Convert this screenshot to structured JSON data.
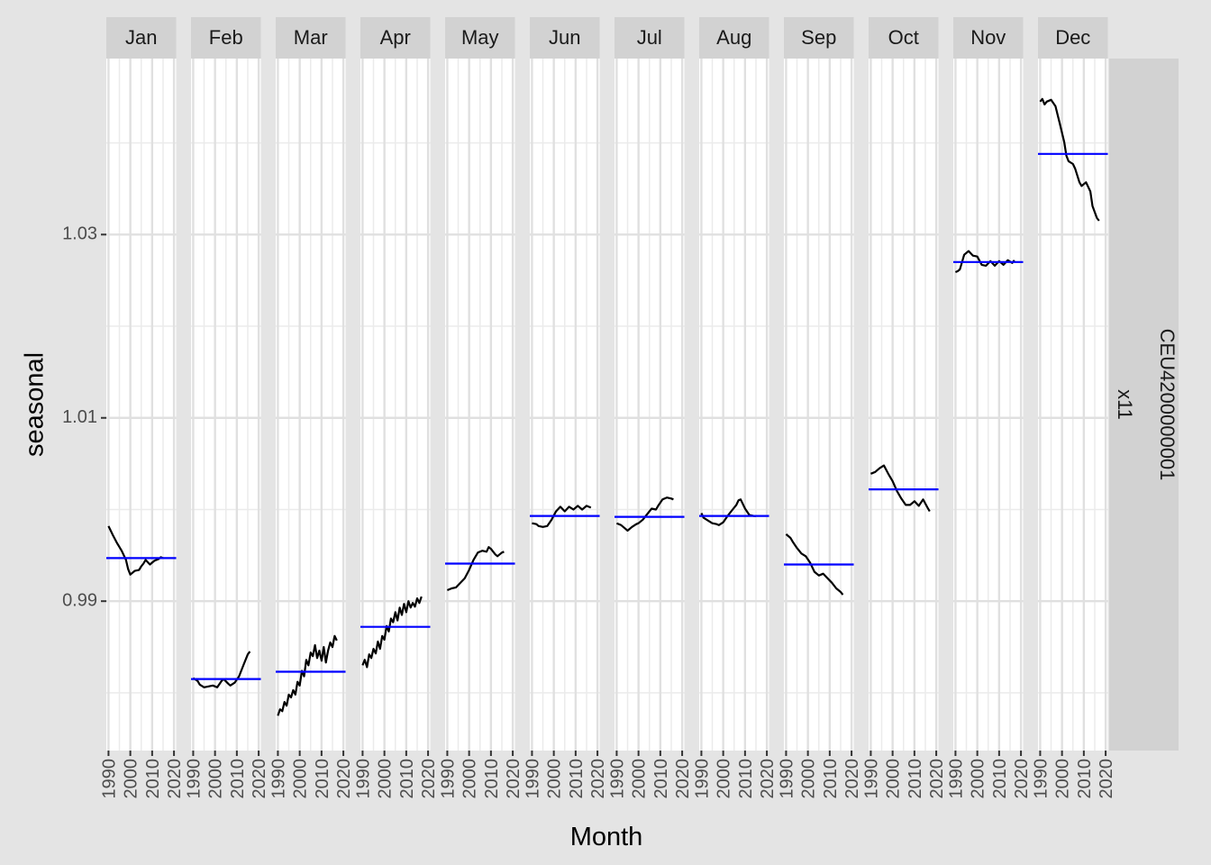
{
  "chart_data": {
    "type": "line",
    "xlabel": "Month",
    "ylabel": "seasonal",
    "facet_row_labels": [
      "CEU4200000001",
      "x11"
    ],
    "months": [
      "Jan",
      "Feb",
      "Mar",
      "Apr",
      "May",
      "Jun",
      "Jul",
      "Aug",
      "Sep",
      "Oct",
      "Nov",
      "Dec"
    ],
    "x_ticks": [
      1990,
      2000,
      2010,
      2020
    ],
    "xlim": [
      1989,
      2021
    ],
    "y_ticks": [
      0.99,
      1.01,
      1.03
    ],
    "y_tick_labels": [
      "0.99",
      "1.01",
      "1.03"
    ],
    "ylim": [
      0.9737,
      1.0492
    ],
    "line_color": "#000000",
    "mean_color": "#0000ff",
    "panels": [
      {
        "month": "Jan",
        "mean": 0.9947,
        "series": [
          [
            1990,
            0.9982
          ],
          [
            1992,
            0.9972
          ],
          [
            1994,
            0.9963
          ],
          [
            1996,
            0.9955
          ],
          [
            1998,
            0.9945
          ],
          [
            1999,
            0.9935
          ],
          [
            2000,
            0.9929
          ],
          [
            2002,
            0.9933
          ],
          [
            2004,
            0.9934
          ],
          [
            2005,
            0.9938
          ],
          [
            2006,
            0.9941
          ],
          [
            2007,
            0.9945
          ],
          [
            2009,
            0.994
          ],
          [
            2011,
            0.9944
          ],
          [
            2013,
            0.9946
          ],
          [
            2014,
            0.9948
          ],
          [
            2015,
            0.9947
          ]
        ]
      },
      {
        "month": "Feb",
        "mean": 0.9815,
        "series": [
          [
            1990,
            0.9816
          ],
          [
            1992,
            0.9813
          ],
          [
            1993,
            0.9809
          ],
          [
            1995,
            0.9806
          ],
          [
            1997,
            0.9807
          ],
          [
            1999,
            0.9808
          ],
          [
            2001,
            0.9806
          ],
          [
            2003,
            0.9813
          ],
          [
            2004,
            0.9815
          ],
          [
            2006,
            0.981
          ],
          [
            2007,
            0.9808
          ],
          [
            2009,
            0.9811
          ],
          [
            2011,
            0.9818
          ],
          [
            2013,
            0.983
          ],
          [
            2015,
            0.9842
          ],
          [
            2016,
            0.9845
          ]
        ]
      },
      {
        "month": "Mar",
        "mean": 0.9823,
        "series": [
          [
            1990,
            0.9775
          ],
          [
            1991,
            0.9782
          ],
          [
            1992,
            0.978
          ],
          [
            1993,
            0.979
          ],
          [
            1994,
            0.9786
          ],
          [
            1995,
            0.9798
          ],
          [
            1996,
            0.9795
          ],
          [
            1997,
            0.9803
          ],
          [
            1998,
            0.9798
          ],
          [
            1999,
            0.9812
          ],
          [
            2000,
            0.9808
          ],
          [
            2001,
            0.9824
          ],
          [
            2002,
            0.9818
          ],
          [
            2003,
            0.9836
          ],
          [
            2004,
            0.983
          ],
          [
            2005,
            0.9844
          ],
          [
            2006,
            0.984
          ],
          [
            2007,
            0.9852
          ],
          [
            2008,
            0.9838
          ],
          [
            2009,
            0.9846
          ],
          [
            2010,
            0.9835
          ],
          [
            2011,
            0.985
          ],
          [
            2012,
            0.9833
          ],
          [
            2013,
            0.9846
          ],
          [
            2014,
            0.9855
          ],
          [
            2015,
            0.985
          ],
          [
            2016,
            0.9862
          ],
          [
            2017,
            0.9857
          ]
        ]
      },
      {
        "month": "Apr",
        "mean": 0.9872,
        "series": [
          [
            1990,
            0.983
          ],
          [
            1991,
            0.9836
          ],
          [
            1992,
            0.9828
          ],
          [
            1993,
            0.9842
          ],
          [
            1994,
            0.9838
          ],
          [
            1995,
            0.9848
          ],
          [
            1996,
            0.9843
          ],
          [
            1997,
            0.9856
          ],
          [
            1998,
            0.9848
          ],
          [
            1999,
            0.9862
          ],
          [
            2000,
            0.9858
          ],
          [
            2001,
            0.9873
          ],
          [
            2002,
            0.9867
          ],
          [
            2003,
            0.9881
          ],
          [
            2004,
            0.9877
          ],
          [
            2005,
            0.9888
          ],
          [
            2006,
            0.9879
          ],
          [
            2007,
            0.9893
          ],
          [
            2008,
            0.9885
          ],
          [
            2009,
            0.9897
          ],
          [
            2010,
            0.9888
          ],
          [
            2011,
            0.99
          ],
          [
            2012,
            0.9893
          ],
          [
            2013,
            0.9898
          ],
          [
            2014,
            0.9894
          ],
          [
            2015,
            0.9903
          ],
          [
            2016,
            0.9898
          ],
          [
            2017,
            0.9905
          ]
        ]
      },
      {
        "month": "May",
        "mean": 0.9941,
        "series": [
          [
            1990,
            0.9912
          ],
          [
            1992,
            0.9914
          ],
          [
            1994,
            0.9915
          ],
          [
            1996,
            0.992
          ],
          [
            1998,
            0.9925
          ],
          [
            2000,
            0.9934
          ],
          [
            2002,
            0.9945
          ],
          [
            2004,
            0.9953
          ],
          [
            2006,
            0.9955
          ],
          [
            2008,
            0.9954
          ],
          [
            2009,
            0.9959
          ],
          [
            2010,
            0.9957
          ],
          [
            2012,
            0.9951
          ],
          [
            2013,
            0.9949
          ],
          [
            2014,
            0.9951
          ],
          [
            2015,
            0.9953
          ],
          [
            2016,
            0.9954
          ]
        ]
      },
      {
        "month": "Jun",
        "mean": 0.9993,
        "series": [
          [
            1990,
            0.9985
          ],
          [
            1992,
            0.9984
          ],
          [
            1993,
            0.9982
          ],
          [
            1995,
            0.9981
          ],
          [
            1997,
            0.9982
          ],
          [
            1999,
            0.9989
          ],
          [
            2001,
            0.9998
          ],
          [
            2003,
            1.0003
          ],
          [
            2005,
            0.9998
          ],
          [
            2007,
            1.0003
          ],
          [
            2009,
            1.0
          ],
          [
            2011,
            1.0004
          ],
          [
            2013,
            1.0
          ],
          [
            2015,
            1.0004
          ],
          [
            2016,
            1.0003
          ],
          [
            2017,
            1.0002
          ]
        ]
      },
      {
        "month": "Jul",
        "mean": 0.9992,
        "series": [
          [
            1990,
            0.9985
          ],
          [
            1992,
            0.9983
          ],
          [
            1994,
            0.9979
          ],
          [
            1995,
            0.9977
          ],
          [
            1997,
            0.9981
          ],
          [
            1999,
            0.9984
          ],
          [
            2000,
            0.9985
          ],
          [
            2002,
            0.9989
          ],
          [
            2004,
            0.9995
          ],
          [
            2006,
            1.0001
          ],
          [
            2008,
            1.0
          ],
          [
            2009,
            1.0004
          ],
          [
            2011,
            1.0011
          ],
          [
            2013,
            1.0013
          ],
          [
            2015,
            1.0012
          ],
          [
            2016,
            1.0011
          ]
        ]
      },
      {
        "month": "Aug",
        "mean": 0.9993,
        "series": [
          [
            1990,
            0.9996
          ],
          [
            1991,
            0.9991
          ],
          [
            1993,
            0.9988
          ],
          [
            1995,
            0.9985
          ],
          [
            1997,
            0.9984
          ],
          [
            1998,
            0.9983
          ],
          [
            2000,
            0.9986
          ],
          [
            2002,
            0.9993
          ],
          [
            2004,
            0.9999
          ],
          [
            2006,
            1.0005
          ],
          [
            2007,
            1.001
          ],
          [
            2008,
            1.0011
          ],
          [
            2010,
            1.0001
          ],
          [
            2012,
            0.9994
          ],
          [
            2014,
            0.9993
          ],
          [
            2015,
            0.9993
          ]
        ]
      },
      {
        "month": "Sep",
        "mean": 0.994,
        "series": [
          [
            1990,
            0.9973
          ],
          [
            1992,
            0.9969
          ],
          [
            1993,
            0.9965
          ],
          [
            1995,
            0.9958
          ],
          [
            1997,
            0.9952
          ],
          [
            1999,
            0.9949
          ],
          [
            2001,
            0.9942
          ],
          [
            2003,
            0.9932
          ],
          [
            2005,
            0.9928
          ],
          [
            2007,
            0.993
          ],
          [
            2009,
            0.9925
          ],
          [
            2011,
            0.992
          ],
          [
            2013,
            0.9914
          ],
          [
            2015,
            0.991
          ],
          [
            2016,
            0.9907
          ]
        ]
      },
      {
        "month": "Oct",
        "mean": 1.0022,
        "series": [
          [
            1990,
            1.0039
          ],
          [
            1992,
            1.0041
          ],
          [
            1994,
            1.0045
          ],
          [
            1996,
            1.0048
          ],
          [
            1998,
            1.0039
          ],
          [
            2000,
            1.0031
          ],
          [
            2002,
            1.002
          ],
          [
            2004,
            1.0012
          ],
          [
            2006,
            1.0005
          ],
          [
            2008,
            1.0005
          ],
          [
            2010,
            1.0009
          ],
          [
            2012,
            1.0004
          ],
          [
            2014,
            1.0011
          ],
          [
            2016,
            1.0002
          ],
          [
            2017,
            0.9998
          ]
        ]
      },
      {
        "month": "Nov",
        "mean": 1.027,
        "series": [
          [
            1990,
            1.0259
          ],
          [
            1991,
            1.026
          ],
          [
            1992,
            1.0262
          ],
          [
            1994,
            1.0278
          ],
          [
            1996,
            1.0282
          ],
          [
            1998,
            1.0277
          ],
          [
            2000,
            1.0276
          ],
          [
            2002,
            1.0267
          ],
          [
            2004,
            1.0266
          ],
          [
            2006,
            1.0271
          ],
          [
            2008,
            1.0266
          ],
          [
            2010,
            1.0271
          ],
          [
            2012,
            1.0267
          ],
          [
            2014,
            1.0272
          ],
          [
            2016,
            1.0269
          ],
          [
            2017,
            1.0272
          ]
        ]
      },
      {
        "month": "Dec",
        "mean": 1.0388,
        "series": [
          [
            1990,
            1.0445
          ],
          [
            1991,
            1.0448
          ],
          [
            1992,
            1.0442
          ],
          [
            1993,
            1.0445
          ],
          [
            1995,
            1.0447
          ],
          [
            1997,
            1.044
          ],
          [
            1999,
            1.0421
          ],
          [
            2001,
            1.0401
          ],
          [
            2002,
            1.0386
          ],
          [
            2003,
            1.038
          ],
          [
            2005,
            1.0377
          ],
          [
            2006,
            1.0372
          ],
          [
            2008,
            1.0357
          ],
          [
            2009,
            1.0353
          ],
          [
            2011,
            1.0357
          ],
          [
            2013,
            1.0347
          ],
          [
            2014,
            1.0331
          ],
          [
            2016,
            1.0318
          ],
          [
            2017,
            1.0315
          ]
        ]
      }
    ]
  }
}
